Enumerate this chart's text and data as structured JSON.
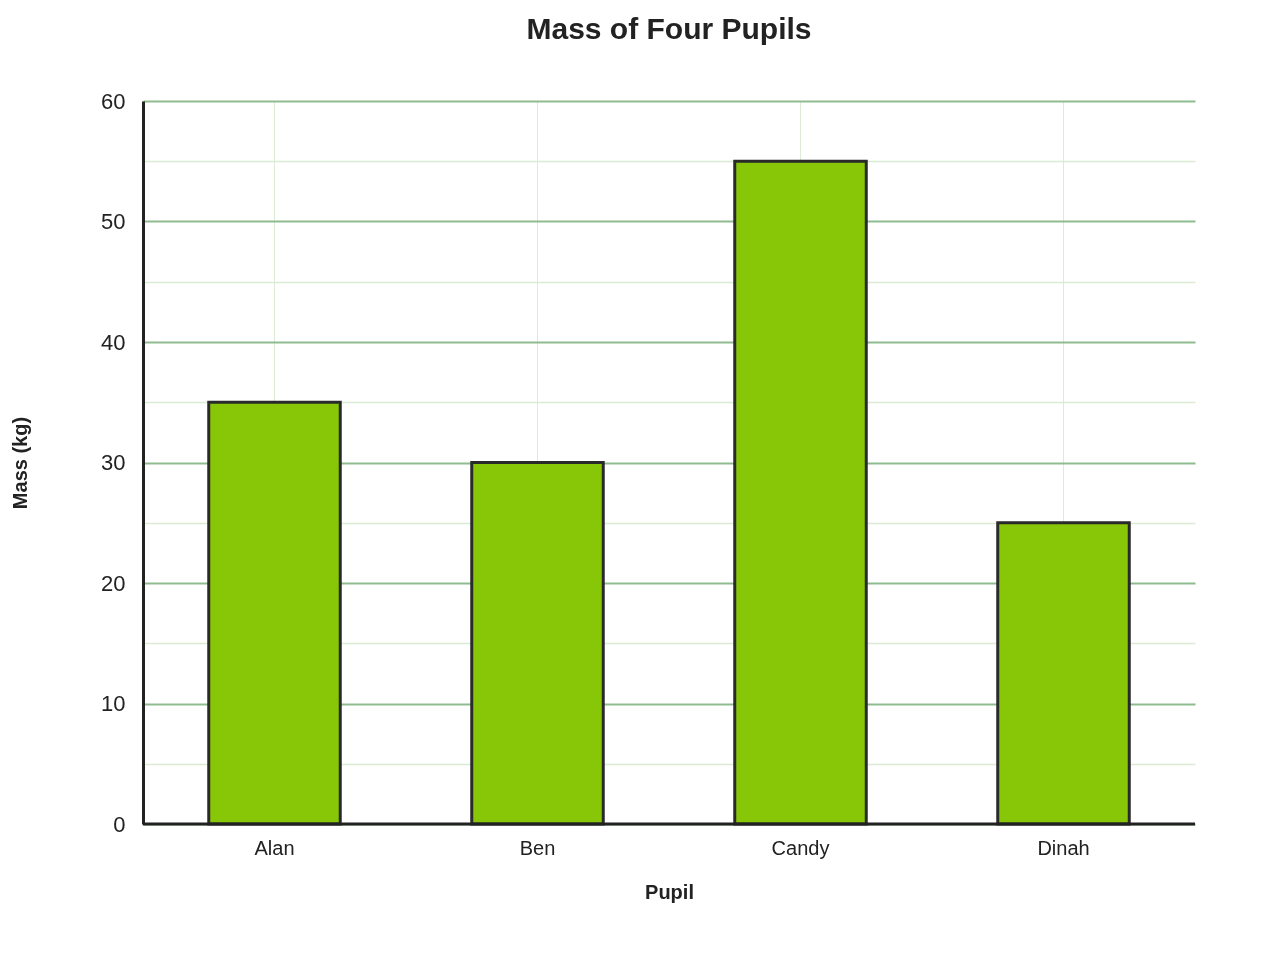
{
  "chart_data": {
    "type": "bar",
    "title": "Mass of Four Pupils",
    "xlabel": "Pupil",
    "ylabel": "Mass (kg)",
    "categories": [
      "Alan",
      "Ben",
      "Candy",
      "Dinah"
    ],
    "values": [
      35,
      30,
      55,
      25
    ],
    "color": "#88c708",
    "ylim": [
      0,
      60
    ],
    "yticks": [
      0,
      {
        "value": 5,
        "label": null
      },
      10,
      {
        "value": 15,
        "label": null
      },
      20,
      {
        "value": 25,
        "label": null
      },
      30,
      {
        "value": 35,
        "label": null
      },
      40,
      {
        "value": 45,
        "label": null
      },
      50,
      {
        "value": 55,
        "label": null
      },
      60
    ],
    "grid": true
  }
}
